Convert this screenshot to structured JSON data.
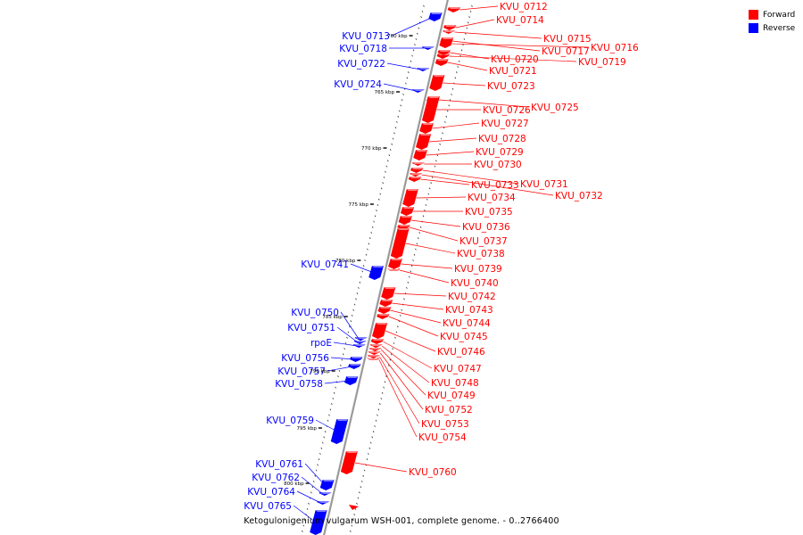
{
  "caption": "Ketogulonigenium vulgarum WSH-001, complete genome. - 0..2766400",
  "legend": [
    {
      "label": "Forward",
      "color": "#ff0000"
    },
    {
      "label": "Reverse",
      "color": "#0000ff"
    }
  ],
  "colors": {
    "forward": "#ff0000",
    "reverse": "#0000ff",
    "backbone": "#9a9a9a"
  },
  "kbp_marks": [
    "760 kbp",
    "765 kbp",
    "770 kbp",
    "775 kbp",
    "780 kbp",
    "785 kbp",
    "790 kbp",
    "795 kbp",
    "800 kbp"
  ],
  "forward_genes": [
    "KVU_0712",
    "KVU_0714",
    "KVU_0715",
    "KVU_0716",
    "KVU_0717",
    "KVU_0719",
    "KVU_0720",
    "KVU_0721",
    "KVU_0723",
    "KVU_0725",
    "KVU_0726",
    "KVU_0727",
    "KVU_0728",
    "KVU_0729",
    "KVU_0730",
    "KVU_0731",
    "KVU_0733",
    "KVU_0732",
    "KVU_0734",
    "KVU_0735",
    "KVU_0736",
    "KVU_0737",
    "KVU_0738",
    "KVU_0739",
    "KVU_0740",
    "KVU_0742",
    "KVU_0743",
    "KVU_0744",
    "KVU_0745",
    "KVU_0746",
    "KVU_0747",
    "KVU_0748",
    "KVU_0749",
    "KVU_0752",
    "KVU_0753",
    "KVU_0754",
    "KVU_0760"
  ],
  "reverse_genes": [
    "KVU_0713",
    "KVU_0718",
    "KVU_0722",
    "KVU_0724",
    "KVU_0741",
    "KVU_0750",
    "KVU_0751",
    "rpoE",
    "KVU_0756",
    "KVU_0757",
    "KVU_0758",
    "KVU_0759",
    "KVU_0761",
    "KVU_0762",
    "KVU_0764",
    "KVU_0765"
  ]
}
